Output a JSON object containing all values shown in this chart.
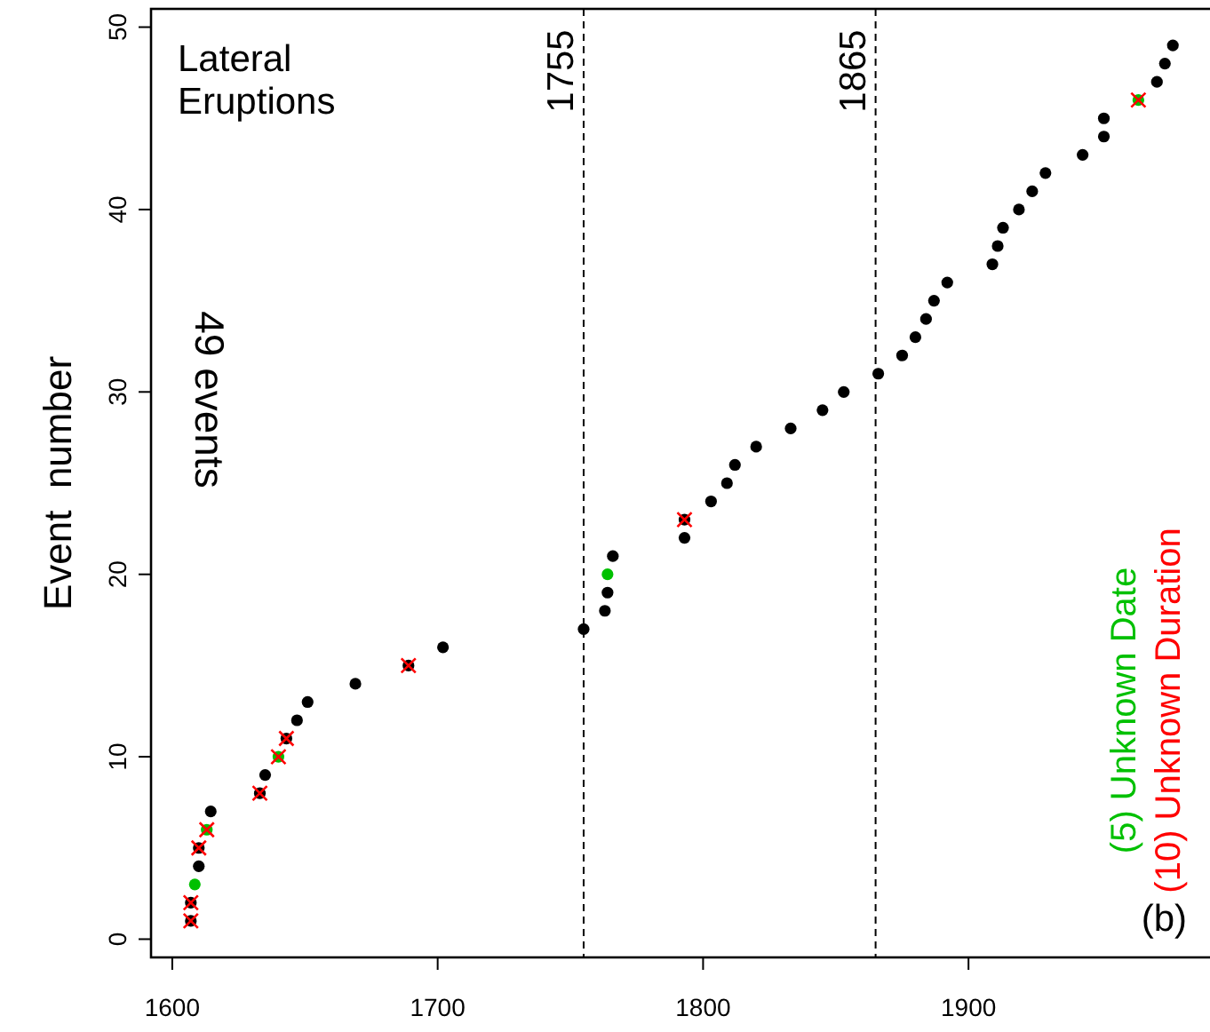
{
  "chart_data": {
    "type": "scatter",
    "ylabel": "Event  number",
    "annotations": [
      "Lateral\nEruptions",
      "49 events",
      "(b)"
    ],
    "xlim": [
      1592,
      1993
    ],
    "ylim": [
      -1,
      51
    ],
    "xticks": [
      1600,
      1700,
      1800,
      1900
    ],
    "yticks": [
      0,
      10,
      20,
      30,
      40,
      50
    ],
    "grid": false,
    "legend": "right",
    "ref_lines": [
      {
        "axis": "x",
        "value": 1755,
        "label": "1755",
        "line_style": "dashed",
        "color": "#000000"
      },
      {
        "axis": "x",
        "value": 1865,
        "label": "1865",
        "line_style": "dashed",
        "color": "#000000"
      }
    ],
    "series": [
      {
        "color": "#000000",
        "marker": "circle",
        "x": [
          1607,
          1607,
          1610,
          1610,
          1614.5,
          1633,
          1635,
          1643,
          1647,
          1651,
          1669,
          1689,
          1702,
          1755,
          1763,
          1764,
          1766,
          1793,
          1793,
          1803,
          1809,
          1812,
          1820,
          1833,
          1845,
          1853,
          1866,
          1875,
          1880,
          1884,
          1887,
          1892,
          1909,
          1911,
          1913,
          1919,
          1924,
          1929,
          1943,
          1951,
          1951,
          1971,
          1974,
          1977
        ],
        "values": [
          1,
          2,
          4,
          5,
          7,
          8,
          9,
          11,
          12,
          13,
          14,
          15,
          16,
          17,
          18,
          19,
          21,
          22,
          23,
          24,
          25,
          26,
          27,
          28,
          29,
          30,
          31,
          32,
          33,
          34,
          35,
          36,
          37,
          38,
          39,
          40,
          41,
          42,
          43,
          44,
          45,
          47,
          48,
          49
        ]
      },
      {
        "name": "(5) Unknown Date",
        "color": "#00c000",
        "marker": "circle",
        "x": [
          1608.5,
          1613,
          1640,
          1764,
          1964
        ],
        "values": [
          3,
          6,
          10,
          20,
          46
        ]
      },
      {
        "name": "(10) Unknown Duration",
        "color": "#ff0000",
        "marker": "cross",
        "x": [
          1607,
          1607,
          1610,
          1613,
          1633,
          1640,
          1643,
          1689,
          1793,
          1964
        ],
        "values": [
          1,
          2,
          5,
          6,
          8,
          10,
          11,
          15,
          23,
          46
        ]
      }
    ]
  }
}
